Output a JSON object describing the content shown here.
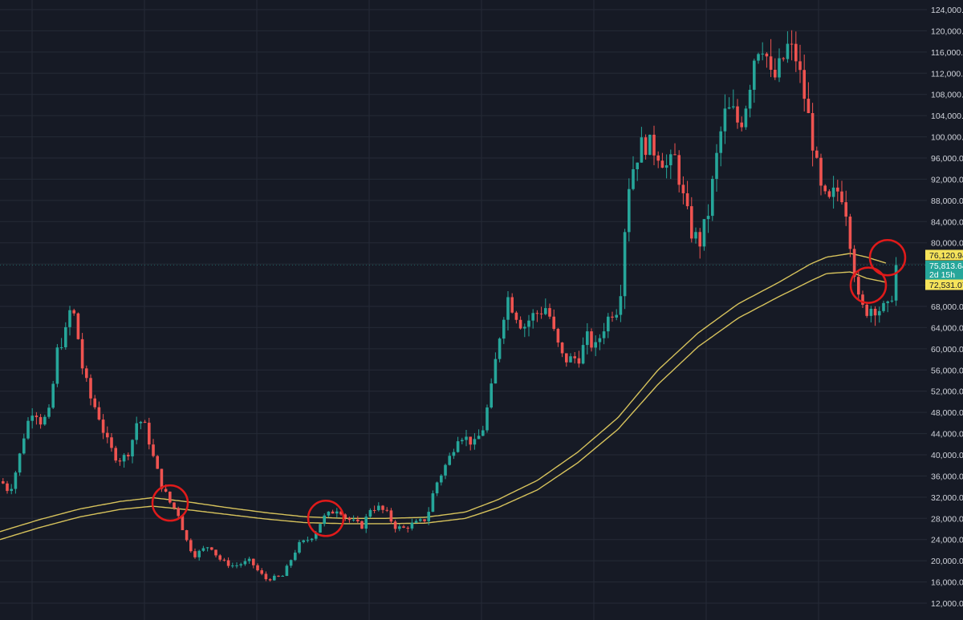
{
  "chart_data": {
    "type": "candlestick",
    "title": "",
    "xlabel": "",
    "ylabel": "",
    "ylim": [
      11000,
      125500
    ],
    "grid": true,
    "y_ticks": [
      "12,000.00",
      "16,000.00",
      "20,000.00",
      "24,000.00",
      "28,000.00",
      "32,000.00",
      "36,000.00",
      "40,000.00",
      "44,000.00",
      "48,000.00",
      "52,000.00",
      "56,000.00",
      "60,000.00",
      "64,000.00",
      "68,000.00",
      "72,000.00",
      "76,000.00",
      "80,000.00",
      "84,000.00",
      "88,000.00",
      "92,000.00",
      "96,000.00",
      "100,000.00",
      "104,000.00",
      "108,000.00",
      "112,000.00",
      "116,000.00",
      "120,000.00",
      "124,000.00"
    ],
    "y_tick_values": [
      12000,
      16000,
      20000,
      24000,
      28000,
      32000,
      36000,
      40000,
      44000,
      48000,
      52000,
      56000,
      60000,
      64000,
      68000,
      72000,
      76000,
      80000,
      84000,
      88000,
      92000,
      96000,
      100000,
      104000,
      108000,
      112000,
      116000,
      120000,
      124000
    ],
    "price_path": [
      [
        0,
        35000
      ],
      [
        10,
        33000
      ],
      [
        20,
        38000
      ],
      [
        30,
        45000
      ],
      [
        40,
        49000
      ],
      [
        50,
        46000
      ],
      [
        60,
        48000
      ],
      [
        70,
        60000
      ],
      [
        80,
        63000
      ],
      [
        85,
        67000
      ],
      [
        92,
        66000
      ],
      [
        100,
        57000
      ],
      [
        110,
        51000
      ],
      [
        120,
        48000
      ],
      [
        130,
        43000
      ],
      [
        140,
        40000
      ],
      [
        150,
        39000
      ],
      [
        160,
        41000
      ],
      [
        170,
        47000
      ],
      [
        180,
        45000
      ],
      [
        190,
        39000
      ],
      [
        200,
        34000
      ],
      [
        210,
        31000
      ],
      [
        220,
        29000
      ],
      [
        230,
        24000
      ],
      [
        240,
        21000
      ],
      [
        250,
        22000
      ],
      [
        260,
        23000
      ],
      [
        270,
        20500
      ],
      [
        280,
        19500
      ],
      [
        290,
        19000
      ],
      [
        300,
        19500
      ],
      [
        310,
        20000
      ],
      [
        320,
        18000
      ],
      [
        330,
        16500
      ],
      [
        340,
        16800
      ],
      [
        350,
        17000
      ],
      [
        360,
        20000
      ],
      [
        370,
        23000
      ],
      [
        380,
        23800
      ],
      [
        390,
        25000
      ],
      [
        400,
        28000
      ],
      [
        410,
        29000
      ],
      [
        420,
        30000
      ],
      [
        430,
        28000
      ],
      [
        440,
        27200
      ],
      [
        450,
        26500
      ],
      [
        460,
        30000
      ],
      [
        470,
        30000
      ],
      [
        480,
        29000
      ],
      [
        490,
        26500
      ],
      [
        500,
        26000
      ],
      [
        510,
        26800
      ],
      [
        520,
        27200
      ],
      [
        530,
        28000
      ],
      [
        540,
        34000
      ],
      [
        550,
        37000
      ],
      [
        560,
        40000
      ],
      [
        570,
        44000
      ],
      [
        580,
        43000
      ],
      [
        590,
        42000
      ],
      [
        600,
        45000
      ],
      [
        610,
        52000
      ],
      [
        620,
        62000
      ],
      [
        630,
        70000
      ],
      [
        640,
        67000
      ],
      [
        650,
        64000
      ],
      [
        660,
        66000
      ],
      [
        670,
        67000
      ],
      [
        680,
        68000
      ],
      [
        690,
        62000
      ],
      [
        700,
        58000
      ],
      [
        710,
        58000
      ],
      [
        720,
        58500
      ],
      [
        730,
        62000
      ],
      [
        740,
        60000
      ],
      [
        750,
        64000
      ],
      [
        760,
        67000
      ],
      [
        770,
        68000
      ],
      [
        780,
        90000
      ],
      [
        790,
        96000
      ],
      [
        800,
        99000
      ],
      [
        810,
        98000
      ],
      [
        820,
        97000
      ],
      [
        830,
        94000
      ],
      [
        840,
        96000
      ],
      [
        850,
        88000
      ],
      [
        860,
        82000
      ],
      [
        870,
        80000
      ],
      [
        880,
        85000
      ],
      [
        890,
        95000
      ],
      [
        900,
        104000
      ],
      [
        910,
        105000
      ],
      [
        920,
        102000
      ],
      [
        930,
        108000
      ],
      [
        940,
        117000
      ],
      [
        950,
        118000
      ],
      [
        960,
        110000
      ],
      [
        970,
        113000
      ],
      [
        980,
        117000
      ],
      [
        990,
        115000
      ],
      [
        1000,
        108000
      ],
      [
        1010,
        100000
      ],
      [
        1020,
        90000
      ],
      [
        1030,
        87000
      ],
      [
        1040,
        90000
      ],
      [
        1050,
        89000
      ],
      [
        1060,
        78000
      ],
      [
        1068,
        69000
      ],
      [
        1075,
        67000
      ],
      [
        1085,
        68000
      ],
      [
        1095,
        67500
      ],
      [
        1105,
        67500
      ],
      [
        1112,
        72000
      ],
      [
        1115,
        75800
      ]
    ],
    "ma_upper": [
      [
        0,
        25500
      ],
      [
        50,
        27800
      ],
      [
        100,
        29800
      ],
      [
        150,
        31200
      ],
      [
        190,
        31900
      ],
      [
        230,
        31200
      ],
      [
        280,
        30100
      ],
      [
        330,
        29100
      ],
      [
        380,
        28300
      ],
      [
        430,
        28000
      ],
      [
        480,
        28000
      ],
      [
        530,
        28200
      ],
      [
        580,
        29200
      ],
      [
        620,
        31500
      ],
      [
        670,
        35200
      ],
      [
        720,
        40500
      ],
      [
        770,
        47000
      ],
      [
        820,
        56000
      ],
      [
        870,
        63000
      ],
      [
        920,
        68500
      ],
      [
        970,
        72500
      ],
      [
        1010,
        76000
      ],
      [
        1030,
        77300
      ],
      [
        1060,
        78000
      ],
      [
        1080,
        77300
      ],
      [
        1105,
        76120
      ]
    ],
    "ma_lower": [
      [
        0,
        24000
      ],
      [
        50,
        26300
      ],
      [
        100,
        28300
      ],
      [
        150,
        29700
      ],
      [
        190,
        30300
      ],
      [
        230,
        29700
      ],
      [
        280,
        28800
      ],
      [
        330,
        27900
      ],
      [
        380,
        27200
      ],
      [
        430,
        27000
      ],
      [
        480,
        27000
      ],
      [
        530,
        27100
      ],
      [
        580,
        28000
      ],
      [
        620,
        30000
      ],
      [
        670,
        33400
      ],
      [
        720,
        38500
      ],
      [
        770,
        44800
      ],
      [
        820,
        53300
      ],
      [
        870,
        60400
      ],
      [
        920,
        65800
      ],
      [
        970,
        69800
      ],
      [
        1010,
        72800
      ],
      [
        1030,
        74200
      ],
      [
        1060,
        74500
      ],
      [
        1080,
        73300
      ],
      [
        1105,
        72531
      ]
    ],
    "last_price": 75813.64,
    "badges": {
      "upper_ma": "76,120.94",
      "last": "75,813.64",
      "countdown": "2d 15h",
      "lower_ma": "72,531.07"
    },
    "annotation_circles": [
      {
        "bar_x": 212,
        "price": 30900
      },
      {
        "bar_x": 406,
        "price": 28000
      },
      {
        "bar_x": 1082,
        "price": 72000
      },
      {
        "bar_x": 1106,
        "price": 77200
      }
    ],
    "colors": {
      "background": "#161a25",
      "grid": "#252a36",
      "up": "#26a69a",
      "down": "#ef5350",
      "ma": "#d6c25c",
      "badge_yellow": "#f5e35a",
      "badge_green": "#26a69a",
      "circle": "#e01a1a",
      "axis_text": "#d1d4dc"
    }
  }
}
